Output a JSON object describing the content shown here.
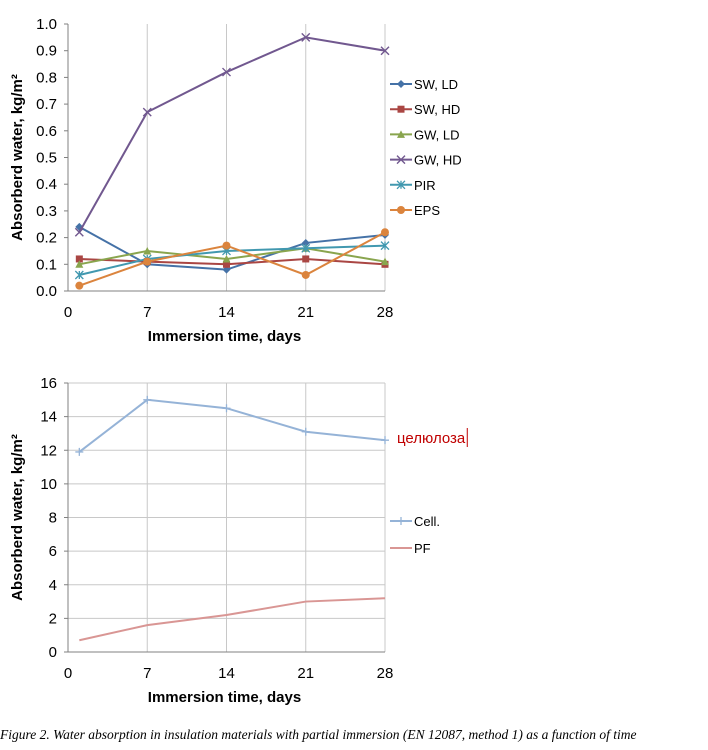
{
  "caption": "Figure 2. Water absorption in insulation materials with partial immersion (EN 12087, method 1) as a function of time",
  "chart_data": [
    {
      "type": "line",
      "xlabel": "Immersion time, days",
      "ylabel": "Absorberd water, kg/m²",
      "xlim": [
        0,
        28
      ],
      "ylim": [
        0,
        1.0
      ],
      "xticks": [
        "0",
        "7",
        "14",
        "21",
        "28"
      ],
      "yticks": [
        "0.0",
        "0.1",
        "0.2",
        "0.3",
        "0.4",
        "0.5",
        "0.6",
        "0.7",
        "0.8",
        "0.9",
        "1.0"
      ],
      "grid": "vertical",
      "legend_position": "right",
      "x": [
        1,
        7,
        14,
        21,
        28
      ],
      "series": [
        {
          "name": "SW, LD",
          "color": "#4572a7",
          "marker": "diamond",
          "values": [
            0.24,
            0.1,
            0.08,
            0.18,
            0.21
          ]
        },
        {
          "name": "SW, HD",
          "color": "#aa4643",
          "marker": "square",
          "values": [
            0.12,
            0.11,
            0.1,
            0.12,
            0.1
          ]
        },
        {
          "name": "GW, LD",
          "color": "#89a54e",
          "marker": "triangle",
          "values": [
            0.1,
            0.15,
            0.12,
            0.16,
            0.11
          ]
        },
        {
          "name": "GW, HD",
          "color": "#71588f",
          "marker": "x",
          "values": [
            0.22,
            0.67,
            0.82,
            0.95,
            0.9
          ]
        },
        {
          "name": "PIR",
          "color": "#4198af",
          "marker": "star",
          "values": [
            0.06,
            0.12,
            0.15,
            0.16,
            0.17
          ]
        },
        {
          "name": "EPS",
          "color": "#db843d",
          "marker": "circle",
          "values": [
            0.02,
            0.11,
            0.17,
            0.06,
            0.22
          ]
        }
      ]
    },
    {
      "type": "line",
      "xlabel": "Immersion time, days",
      "ylabel": "Absorberd water, kg/m²",
      "xlim": [
        0,
        28
      ],
      "ylim": [
        0,
        16
      ],
      "xticks": [
        "0",
        "7",
        "14",
        "21",
        "28"
      ],
      "yticks": [
        "0",
        "2",
        "4",
        "6",
        "8",
        "10",
        "12",
        "14",
        "16"
      ],
      "grid": "both",
      "legend_position": "right",
      "annotation": {
        "text": "целюлоза",
        "color": "#c00000"
      },
      "x": [
        1,
        7,
        14,
        21,
        28
      ],
      "series": [
        {
          "name": "Cell.",
          "color": "#95b3d7",
          "marker": "plus",
          "values": [
            11.9,
            15.0,
            14.5,
            13.1,
            12.6
          ]
        },
        {
          "name": "PF",
          "color": "#d99694",
          "marker": "none",
          "values": [
            0.7,
            1.6,
            2.2,
            3.0,
            3.2
          ]
        }
      ]
    }
  ]
}
